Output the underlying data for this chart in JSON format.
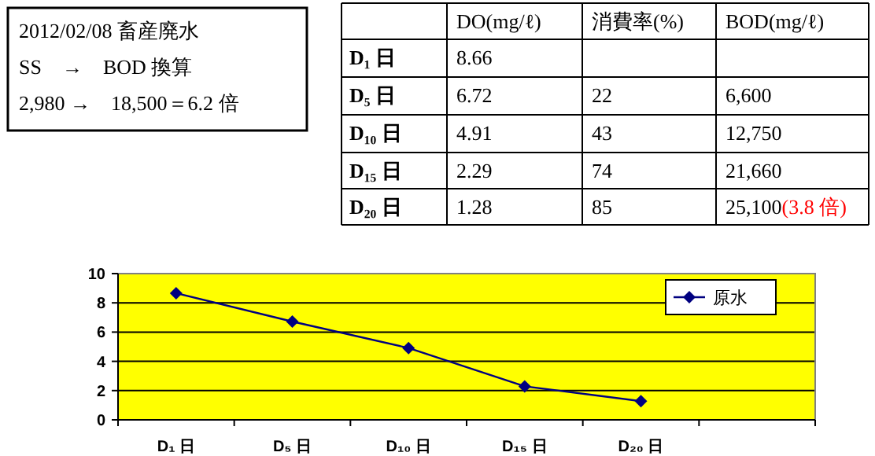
{
  "chart_data": [
    {
      "type": "other",
      "annotations": [
        "2012/02/08 畜産廃水",
        "SS　→　BOD 換算",
        "2,980 →　18,500＝6.2 倍"
      ]
    },
    {
      "type": "other",
      "categories": [
        "D₁ 日",
        "D₅ 日",
        "D₁₀ 日",
        "D₁₅ 日",
        "D₂₀ 日"
      ],
      "series": [
        {
          "name": "DO(mg/ℓ)",
          "values": [
            8.66,
            6.72,
            4.91,
            2.29,
            1.28
          ],
          "value_labels": [
            "8.66",
            "6.72",
            "4.91",
            "2.29",
            "1.28"
          ]
        },
        {
          "name": "消費率(%)",
          "values": [
            null,
            22,
            43,
            74,
            85
          ],
          "value_labels": [
            null,
            "22",
            "43",
            "74",
            "85"
          ]
        },
        {
          "name": "BOD(mg/ℓ)",
          "values": [
            null,
            6600,
            12750,
            21660,
            25100
          ],
          "value_labels": [
            null,
            "6,600",
            "12,750",
            "21,660",
            "25,100"
          ]
        }
      ],
      "annotations": [
        "(3.8 倍)"
      ]
    },
    {
      "type": "line",
      "categories": [
        "D₁ 日",
        "D₅ 日",
        "D₁₀ 日",
        "D₁₅ 日",
        "D₂₀ 日",
        null
      ],
      "series": [
        {
          "name": "原水",
          "color": "#000080",
          "values": [
            8.66,
            6.72,
            4.91,
            2.29,
            1.28,
            null
          ]
        }
      ],
      "ylim": [
        0,
        10
      ],
      "yticks": [
        0,
        2,
        4,
        6,
        8,
        10
      ],
      "grid": "y",
      "legend": "top right",
      "marker": "diamond",
      "line_style": "solid"
    }
  ]
}
